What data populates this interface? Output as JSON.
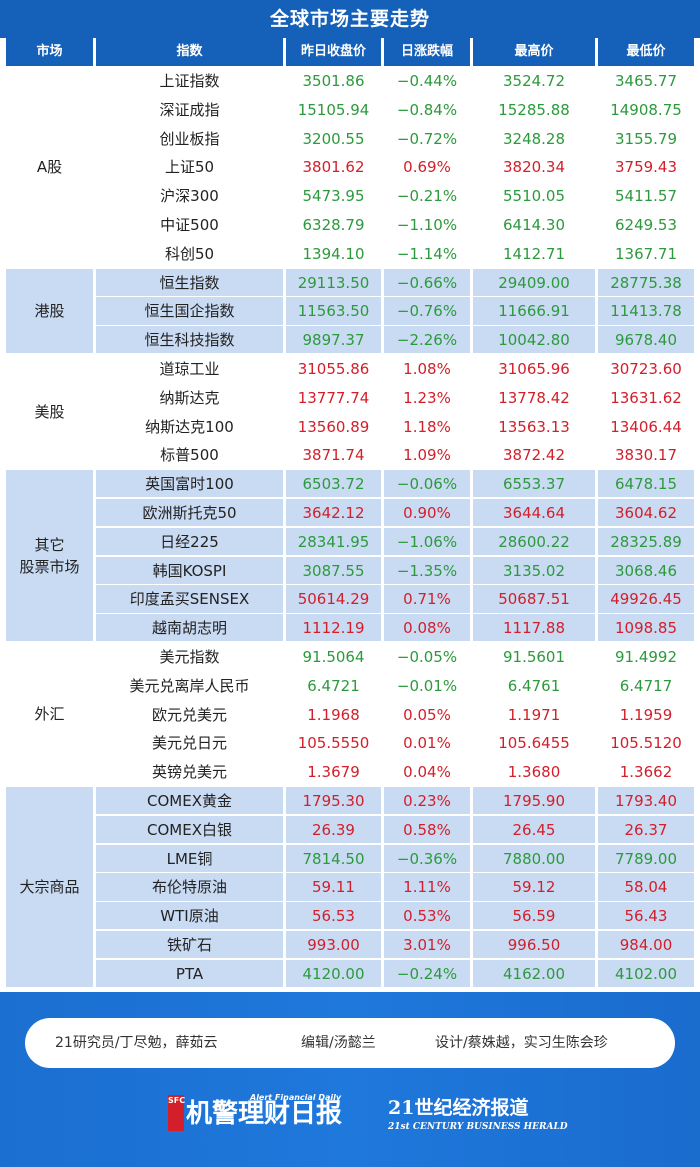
{
  "title": "全球市场主要走势",
  "headers": [
    "市场",
    "指数",
    "昨日收盘价",
    "日涨跌幅",
    "最高价",
    "最低价"
  ],
  "colors": {
    "up": "#d21f2a",
    "down": "#2c9a3c",
    "header_bg": "#1560b8",
    "shade": "#c9daf3"
  },
  "groups": [
    {
      "market": "A股",
      "rows": [
        {
          "name": "上证指数",
          "close": "3501.86",
          "change": "−0.44%",
          "high": "3524.72",
          "low": "3465.77",
          "dir": "down"
        },
        {
          "name": "深证成指",
          "close": "15105.94",
          "change": "−0.84%",
          "high": "15285.88",
          "low": "14908.75",
          "dir": "down"
        },
        {
          "name": "创业板指",
          "close": "3200.55",
          "change": "−0.72%",
          "high": "3248.28",
          "low": "3155.79",
          "dir": "down"
        },
        {
          "name": "上证50",
          "close": "3801.62",
          "change": "0.69%",
          "high": "3820.34",
          "low": "3759.43",
          "dir": "up"
        },
        {
          "name": "沪深300",
          "close": "5473.95",
          "change": "−0.21%",
          "high": "5510.05",
          "low": "5411.57",
          "dir": "down"
        },
        {
          "name": "中证500",
          "close": "6328.79",
          "change": "−1.10%",
          "high": "6414.30",
          "low": "6249.53",
          "dir": "down"
        },
        {
          "name": "科创50",
          "close": "1394.10",
          "change": "−1.14%",
          "high": "1412.71",
          "low": "1367.71",
          "dir": "down"
        }
      ]
    },
    {
      "market": "港股",
      "rows": [
        {
          "name": "恒生指数",
          "close": "29113.50",
          "change": "−0.66%",
          "high": "29409.00",
          "low": "28775.38",
          "dir": "down"
        },
        {
          "name": "恒生国企指数",
          "close": "11563.50",
          "change": "−0.76%",
          "high": "11666.91",
          "low": "11413.78",
          "dir": "down"
        },
        {
          "name": "恒生科技指数",
          "close": "9897.37",
          "change": "−2.26%",
          "high": "10042.80",
          "low": "9678.40",
          "dir": "down"
        }
      ]
    },
    {
      "market": "美股",
      "rows": [
        {
          "name": "道琼工业",
          "close": "31055.86",
          "change": "1.08%",
          "high": "31065.96",
          "low": "30723.60",
          "dir": "up"
        },
        {
          "name": "纳斯达克",
          "close": "13777.74",
          "change": "1.23%",
          "high": "13778.42",
          "low": "13631.62",
          "dir": "up"
        },
        {
          "name": "纳斯达克100",
          "close": "13560.89",
          "change": "1.18%",
          "high": "13563.13",
          "low": "13406.44",
          "dir": "up"
        },
        {
          "name": "标普500",
          "close": "3871.74",
          "change": "1.09%",
          "high": "3872.42",
          "low": "3830.17",
          "dir": "up"
        }
      ]
    },
    {
      "market": "其它\n股票市场",
      "rows": [
        {
          "name": "英国富时100",
          "close": "6503.72",
          "change": "−0.06%",
          "high": "6553.37",
          "low": "6478.15",
          "dir": "down"
        },
        {
          "name": "欧洲斯托克50",
          "close": "3642.12",
          "change": "0.90%",
          "high": "3644.64",
          "low": "3604.62",
          "dir": "up"
        },
        {
          "name": "日经225",
          "close": "28341.95",
          "change": "−1.06%",
          "high": "28600.22",
          "low": "28325.89",
          "dir": "down"
        },
        {
          "name": "韩国KOSPI",
          "close": "3087.55",
          "change": "−1.35%",
          "high": "3135.02",
          "low": "3068.46",
          "dir": "down"
        },
        {
          "name": "印度孟买SENSEX",
          "close": "50614.29",
          "change": "0.71%",
          "high": "50687.51",
          "low": "49926.45",
          "dir": "up"
        },
        {
          "name": "越南胡志明",
          "close": "1112.19",
          "change": "0.08%",
          "high": "1117.88",
          "low": "1098.85",
          "dir": "up"
        }
      ]
    },
    {
      "market": "外汇",
      "rows": [
        {
          "name": "美元指数",
          "close": "91.5064",
          "change": "−0.05%",
          "high": "91.5601",
          "low": "91.4992",
          "dir": "down"
        },
        {
          "name": "美元兑离岸人民币",
          "close": "6.4721",
          "change": "−0.01%",
          "high": "6.4761",
          "low": "6.4717",
          "dir": "down"
        },
        {
          "name": "欧元兑美元",
          "close": "1.1968",
          "change": "0.05%",
          "high": "1.1971",
          "low": "1.1959",
          "dir": "up"
        },
        {
          "name": "美元兑日元",
          "close": "105.5550",
          "change": "0.01%",
          "high": "105.6455",
          "low": "105.5120",
          "dir": "up"
        },
        {
          "name": "英镑兑美元",
          "close": "1.3679",
          "change": "0.04%",
          "high": "1.3680",
          "low": "1.3662",
          "dir": "up"
        }
      ]
    },
    {
      "market": "大宗商品",
      "rows": [
        {
          "name": "COMEX黄金",
          "close": "1795.30",
          "change": "0.23%",
          "high": "1795.90",
          "low": "1793.40",
          "dir": "up"
        },
        {
          "name": "COMEX白银",
          "close": "26.39",
          "change": "0.58%",
          "high": "26.45",
          "low": "26.37",
          "dir": "up"
        },
        {
          "name": "LME铜",
          "close": "7814.50",
          "change": "−0.36%",
          "high": "7880.00",
          "low": "7789.00",
          "dir": "down"
        },
        {
          "name": "布伦特原油",
          "close": "59.11",
          "change": "1.11%",
          "high": "59.12",
          "low": "58.04",
          "dir": "up"
        },
        {
          "name": "WTI原油",
          "close": "56.53",
          "change": "0.53%",
          "high": "56.59",
          "low": "56.43",
          "dir": "up"
        },
        {
          "name": "铁矿石",
          "close": "993.00",
          "change": "3.01%",
          "high": "996.50",
          "low": "984.00",
          "dir": "up"
        },
        {
          "name": "PTA",
          "close": "4120.00",
          "change": "−0.24%",
          "high": "4162.00",
          "low": "4102.00",
          "dir": "down"
        }
      ]
    }
  ],
  "footer": {
    "credits": [
      "21研究员/丁尽勉，薛茹云",
      "编辑/汤懿兰",
      "设计/蔡姝越，实习生陈会珍"
    ],
    "logo1_badge": "SFC",
    "logo1_text": "机警理财日报",
    "logo1_tag": "Alert Financial Daily",
    "logo2_cn": "21世纪经济报道",
    "logo2_en": "21st CENTURY BUSINESS HERALD"
  }
}
